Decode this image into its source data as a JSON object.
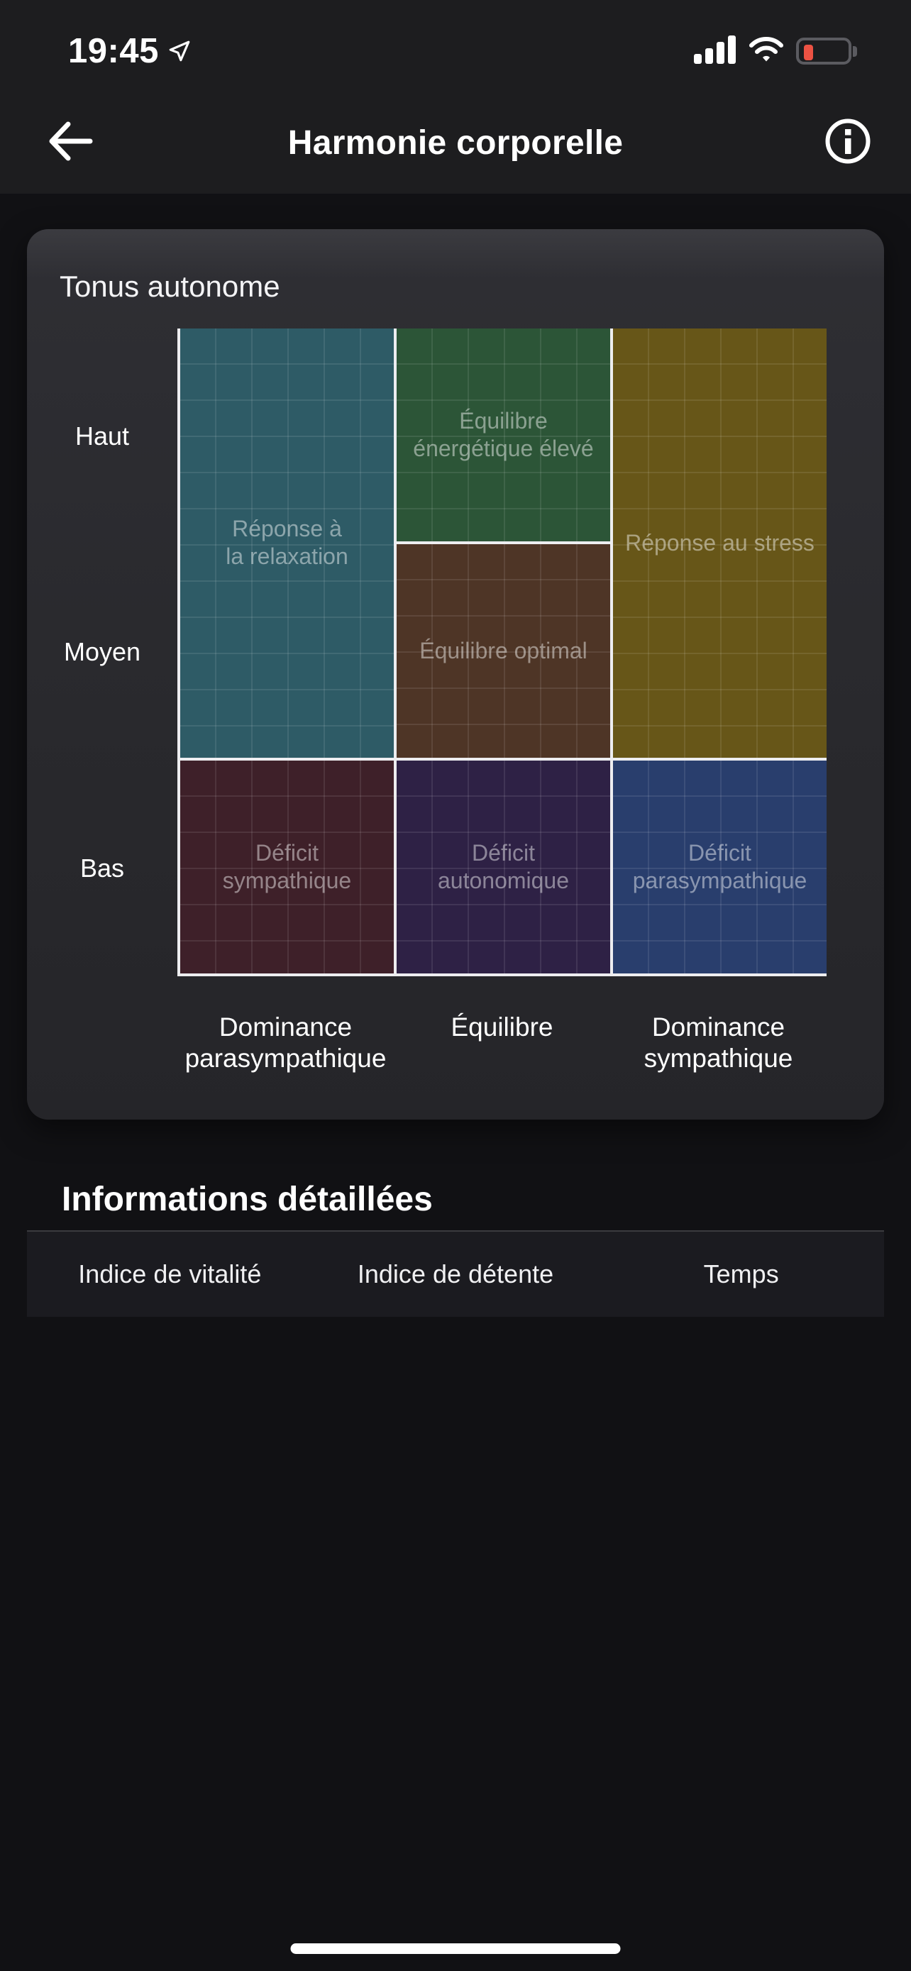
{
  "status_bar": {
    "time": "19:45",
    "battery_color": "#ec5243"
  },
  "nav": {
    "title": "Harmonie corporelle"
  },
  "card": {
    "title": "Tonus autonome"
  },
  "chart_data": {
    "type": "heatmap",
    "title": "Tonus autonome",
    "x_categories": [
      "Dominance parasympathique",
      "Équilibre",
      "Dominance sympathique"
    ],
    "y_categories": [
      "Haut",
      "Moyen",
      "Bas"
    ],
    "x_label_lines": [
      [
        "Dominance",
        "parasympathique"
      ],
      [
        "Équilibre"
      ],
      [
        "Dominance",
        "sympathique"
      ]
    ],
    "grid": true,
    "legend_position": "none",
    "zones": {
      "relaxation": {
        "label": "Réponse à la relaxation",
        "lines": [
          "Réponse à",
          "la relaxation"
        ],
        "color": "#2e5b66",
        "x": "Dominance parasympathique",
        "y": [
          "Haut",
          "Moyen"
        ]
      },
      "energy_high": {
        "label": "Équilibre énergétique élevé",
        "lines": [
          "Équilibre",
          "énergétique élevé"
        ],
        "color": "#2c5537",
        "x": "Équilibre",
        "y": [
          "Haut"
        ]
      },
      "stress": {
        "label": "Réponse au stress",
        "lines": [
          "Réponse au stress"
        ],
        "color": "#675618",
        "x": "Dominance sympathique",
        "y": [
          "Haut",
          "Moyen"
        ]
      },
      "optimal": {
        "label": "Équilibre optimal",
        "lines": [
          "Équilibre optimal"
        ],
        "color": "#4e3526",
        "x": "Équilibre",
        "y": [
          "Moyen"
        ]
      },
      "deficit_sympathique": {
        "label": "Déficit sympathique",
        "lines": [
          "Déficit",
          "sympathique"
        ],
        "color": "#3e2029",
        "x": "Dominance parasympathique",
        "y": [
          "Bas"
        ]
      },
      "deficit_autonomique": {
        "label": "Déficit autonomique",
        "lines": [
          "Déficit",
          "autonomique"
        ],
        "color": "#2e2145",
        "x": "Équilibre",
        "y": [
          "Bas"
        ]
      },
      "deficit_parasympathique": {
        "label": "Déficit parasympathique",
        "lines": [
          "Déficit",
          "parasympathique"
        ],
        "color": "#293e6d",
        "x": "Dominance sympathique",
        "y": [
          "Bas"
        ]
      }
    }
  },
  "details": {
    "heading": "Informations détaillées",
    "columns": [
      "Indice de vitalité",
      "Indice de détente",
      "Temps"
    ]
  }
}
